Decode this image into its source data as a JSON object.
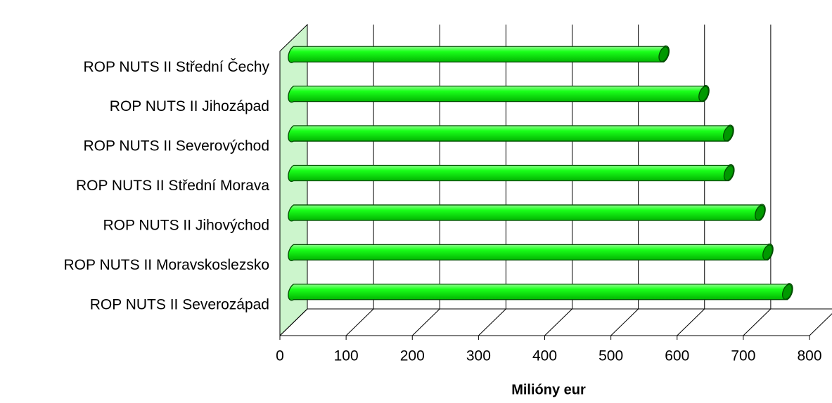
{
  "chart_data": {
    "type": "bar3d",
    "orientation": "horizontal",
    "x_label": "Milióny eur",
    "categories": [
      "ROP NUTS II Střední Čechy",
      "ROP NUTS II Jihozápad",
      "ROP NUTS II Severovýchod",
      "ROP NUTS II Střední Morava",
      "ROP NUTS II Jihovýchod",
      "ROP NUTS II Moravskoslezsko",
      "ROP NUTS II Severozápad"
    ],
    "values": [
      559.1,
      619.4,
      656.5,
      657.4,
      704.4,
      716.1,
      745.7
    ],
    "color": "#00e600",
    "xlim": [
      0,
      800
    ],
    "xticks": [
      0,
      100,
      200,
      300,
      400,
      500,
      600,
      700,
      800
    ],
    "grid": true
  }
}
